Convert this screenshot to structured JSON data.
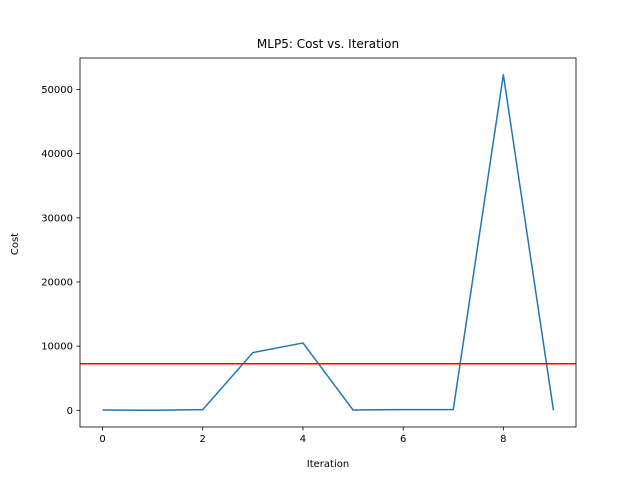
{
  "chart_data": {
    "type": "line",
    "title": "MLP5: Cost vs. Iteration",
    "xlabel": "Iteration",
    "ylabel": "Cost",
    "x": [
      0,
      1,
      2,
      3,
      4,
      5,
      6,
      7,
      8,
      9
    ],
    "series": [
      {
        "values": [
          50,
          0,
          100,
          9000,
          10500,
          50,
          100,
          100,
          52300,
          0
        ],
        "color": "#1f77b4"
      }
    ],
    "reference_line": {
      "y": 7250,
      "color": "#ff0000"
    },
    "xlim": [
      -0.45,
      9.45
    ],
    "ylim": [
      -2600,
      54900
    ],
    "xticks": [
      0,
      2,
      4,
      6,
      8
    ],
    "yticks": [
      0,
      10000,
      20000,
      30000,
      40000,
      50000
    ],
    "grid": false,
    "legend": "none"
  }
}
